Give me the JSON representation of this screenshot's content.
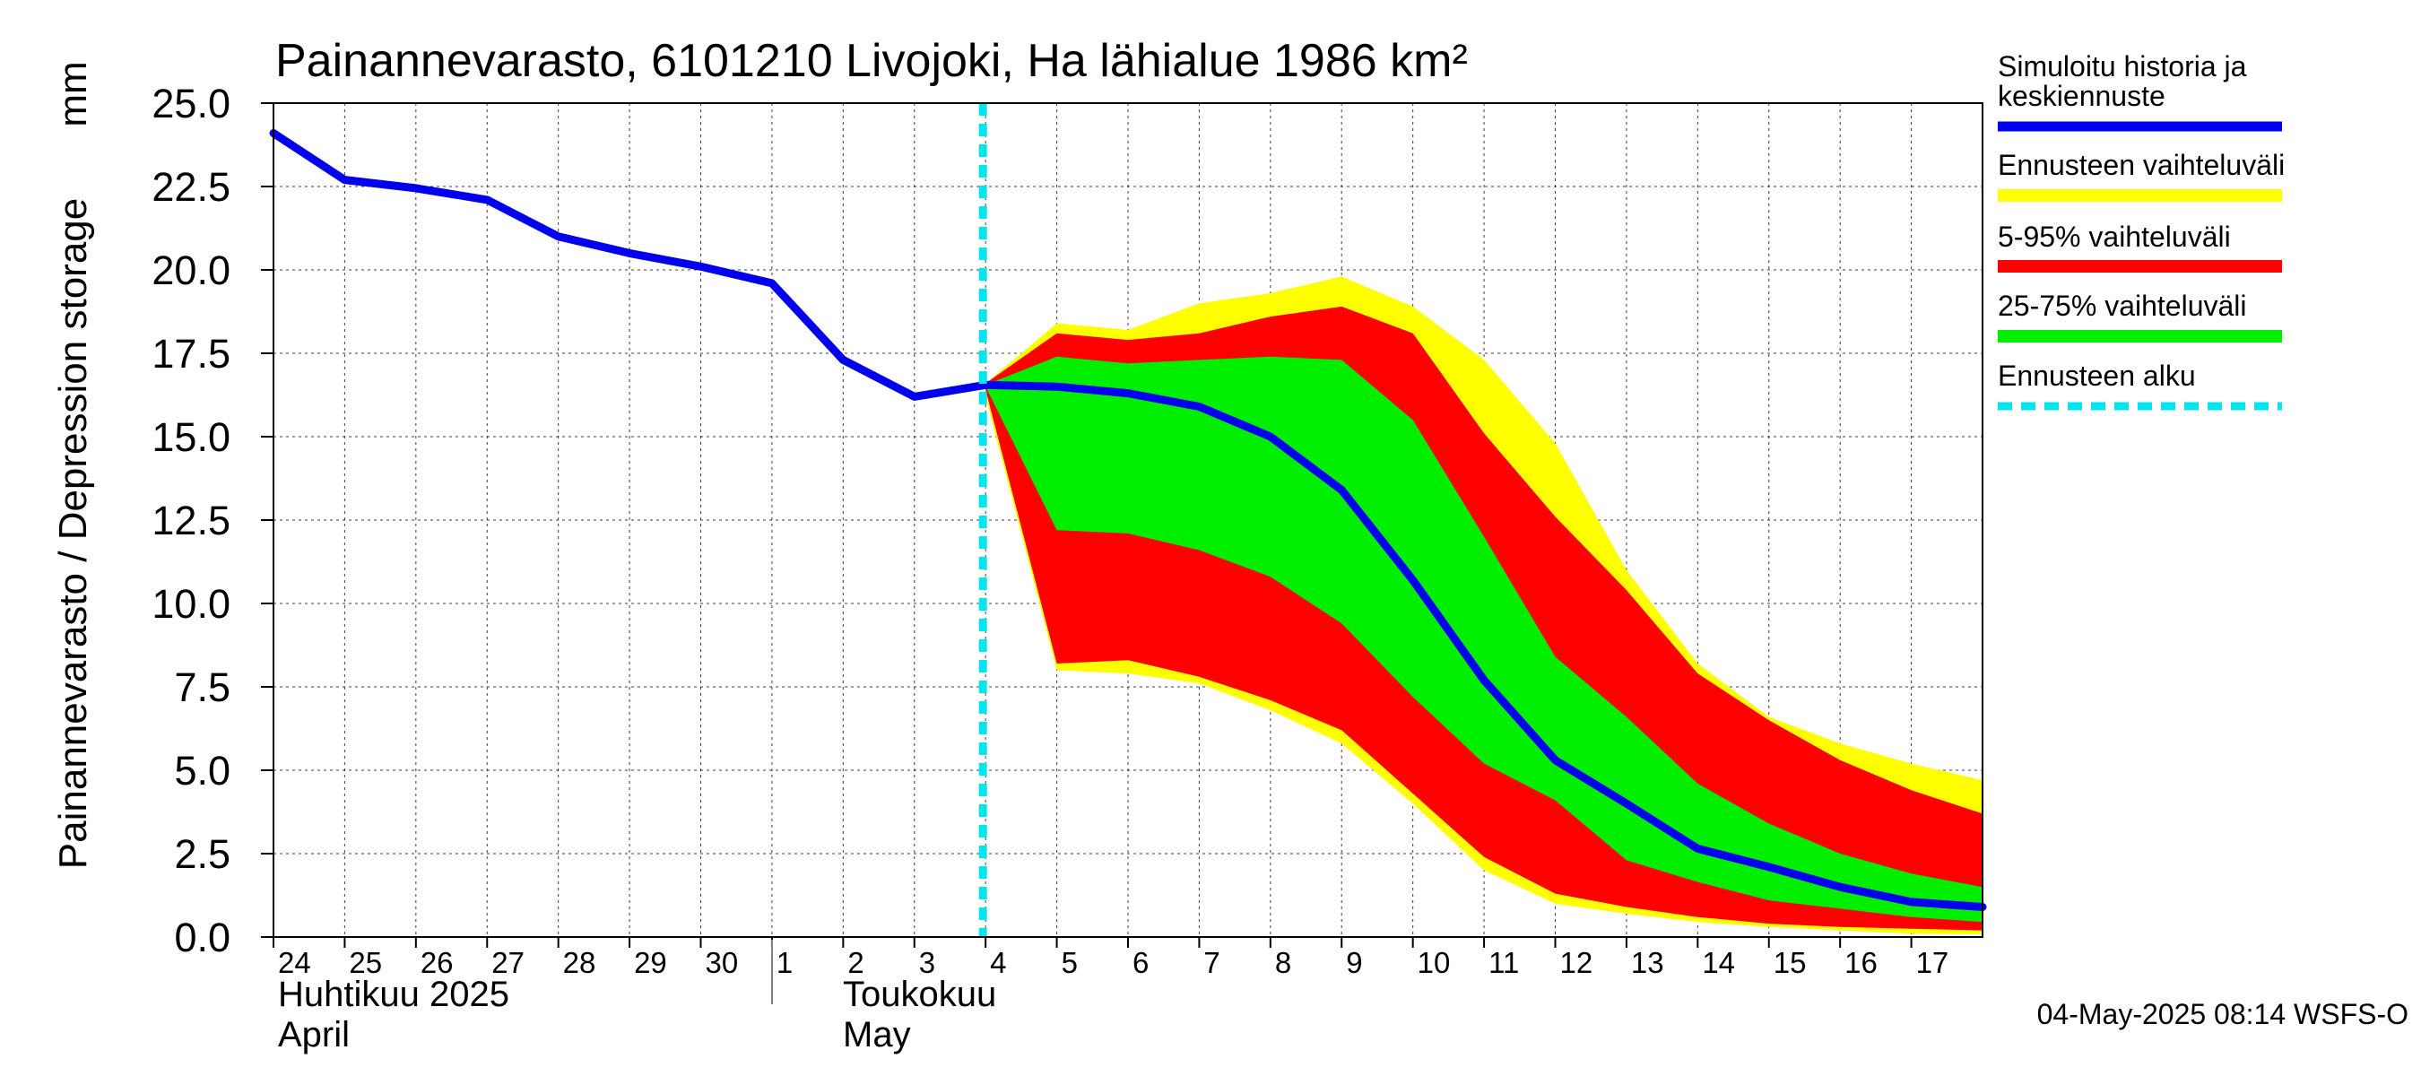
{
  "chart_data": {
    "type": "area",
    "title": "Painannevarasto, 6101210 Livojoki, Ha lähialue 1986 km²",
    "ylabel": "Painannevarasto / Depression storage",
    "yunit": "mm",
    "ylim": [
      0,
      25
    ],
    "yticks": [
      "0.0",
      "2.5",
      "5.0",
      "7.5",
      "10.0",
      "12.5",
      "15.0",
      "17.5",
      "20.0",
      "22.5",
      "25.0"
    ],
    "x_start": "2025-04-24",
    "x_end": "2025-05-18",
    "xticks": [
      "24",
      "25",
      "26",
      "27",
      "28",
      "29",
      "30",
      "1",
      "2",
      "3",
      "4",
      "5",
      "6",
      "7",
      "8",
      "9",
      "10",
      "11",
      "12",
      "13",
      "14",
      "15",
      "16",
      "17"
    ],
    "months": [
      {
        "fi": "Huhtikuu  2025",
        "en": "April"
      },
      {
        "fi": "Toukokuu",
        "en": "May"
      }
    ],
    "forecast_start_day": 10,
    "history": {
      "name": "Simuloitu historia ja keskiennuste",
      "color": "#0000ee",
      "days": [
        0,
        1,
        2,
        3,
        4,
        5,
        6,
        7,
        8,
        9,
        10
      ],
      "values": [
        24.1,
        22.7,
        22.45,
        22.1,
        21.0,
        20.5,
        20.1,
        19.6,
        17.3,
        16.2,
        16.55
      ]
    },
    "forecast_days": [
      10,
      11,
      12,
      13,
      14,
      15,
      16,
      17,
      18,
      19,
      20,
      21,
      22,
      23,
      24
    ],
    "median": [
      16.55,
      16.5,
      16.3,
      15.9,
      15.0,
      13.4,
      10.7,
      7.7,
      5.3,
      4.0,
      2.65,
      2.1,
      1.5,
      1.05,
      0.9
    ],
    "range_full": {
      "name": "Ennusteen vaihteluväli",
      "color": "#ffff00",
      "upper": [
        16.6,
        18.4,
        18.2,
        19.0,
        19.3,
        19.8,
        18.9,
        17.3,
        14.8,
        11.0,
        8.2,
        6.6,
        5.8,
        5.2,
        4.7
      ],
      "lower": [
        16.2,
        8.0,
        7.9,
        7.6,
        6.8,
        5.8,
        4.0,
        2.0,
        1.0,
        0.7,
        0.45,
        0.3,
        0.2,
        0.1,
        0.08
      ]
    },
    "range_5_95": {
      "name": "5-95% vaihteluväli",
      "color": "#ff0000",
      "upper": [
        16.6,
        18.1,
        17.9,
        18.1,
        18.6,
        18.9,
        18.1,
        15.1,
        12.6,
        10.4,
        7.9,
        6.5,
        5.3,
        4.4,
        3.7
      ],
      "lower": [
        16.4,
        8.2,
        8.3,
        7.8,
        7.1,
        6.2,
        4.3,
        2.4,
        1.3,
        0.9,
        0.6,
        0.4,
        0.3,
        0.25,
        0.2
      ]
    },
    "range_25_75": {
      "name": "25-75% vaihteluväli",
      "color": "#00ee00",
      "upper": [
        16.55,
        17.4,
        17.2,
        17.3,
        17.4,
        17.3,
        15.5,
        12.0,
        8.4,
        6.6,
        4.6,
        3.4,
        2.5,
        1.9,
        1.5
      ],
      "lower": [
        16.5,
        12.2,
        12.1,
        11.6,
        10.8,
        9.4,
        7.2,
        5.2,
        4.1,
        2.3,
        1.65,
        1.1,
        0.85,
        0.6,
        0.45
      ]
    },
    "forecast_start": {
      "name": "Ennusteen alku",
      "color": "#00e5ee"
    }
  },
  "footer": "04-May-2025 08:14 WSFS-O"
}
